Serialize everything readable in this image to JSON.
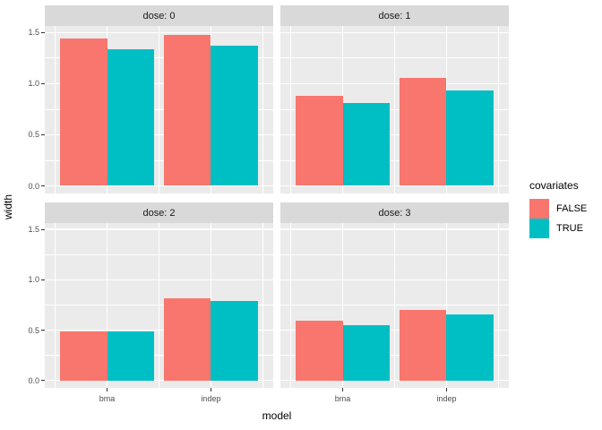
{
  "chart_data": {
    "type": "bar",
    "title": "",
    "xlabel": "model",
    "ylabel": "width",
    "categories": [
      "bma",
      "indep"
    ],
    "series_names": [
      "FALSE",
      "TRUE"
    ],
    "facets": [
      {
        "label": "dose: 0",
        "values": [
          [
            1.44,
            1.34
          ],
          [
            1.48,
            1.37
          ]
        ]
      },
      {
        "label": "dose: 1",
        "values": [
          [
            0.88,
            0.81
          ],
          [
            1.06,
            0.93
          ]
        ]
      },
      {
        "label": "dose: 2",
        "values": [
          [
            0.49,
            0.49
          ],
          [
            0.82,
            0.79
          ]
        ]
      },
      {
        "label": "dose: 3",
        "values": [
          [
            0.59,
            0.55
          ],
          [
            0.7,
            0.66
          ]
        ]
      }
    ],
    "y_ticks": [
      0.0,
      0.5,
      1.0,
      1.5
    ],
    "y_tick_labels": [
      "0.0",
      "0.5",
      "1.0",
      "1.5"
    ],
    "y_minor_ticks": [
      0.25,
      0.75,
      1.25
    ],
    "ylim": [
      -0.0745,
      1.5645
    ],
    "legend": {
      "title": "covariates",
      "entries": [
        {
          "label": "FALSE",
          "color": "#F8766D"
        },
        {
          "label": "TRUE",
          "color": "#00BFC4"
        }
      ]
    },
    "colors": {
      "panel_background": "#ebebeb",
      "strip_background": "#d9d9d9",
      "gridline": "#ffffff",
      "series": [
        "#F8766D",
        "#00BFC4"
      ]
    }
  }
}
